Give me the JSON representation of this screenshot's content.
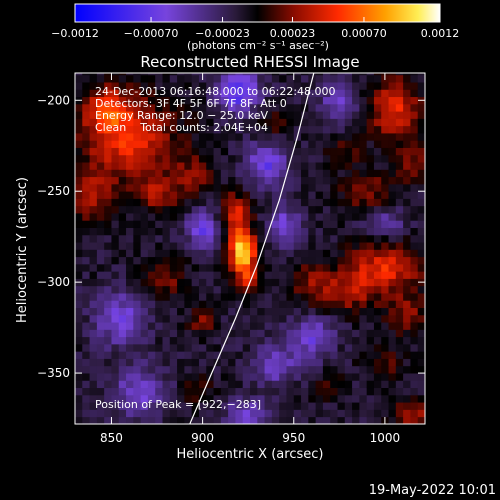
{
  "chart_data": {
    "type": "heatmap",
    "title": "Reconstructed RHESSI Image",
    "xlabel": "Heliocentric X (arcsec)",
    "ylabel": "Heliocentric Y (arcsec)",
    "xlim": [
      830,
      1022
    ],
    "ylim": [
      -378,
      -185
    ],
    "xticks": [
      850,
      900,
      950,
      1000
    ],
    "xtick_labels": [
      "850",
      "900",
      "950",
      "1000"
    ],
    "yticks": [
      -200,
      -250,
      -300,
      -350
    ],
    "ytick_labels": [
      "−200",
      "−250",
      "−300",
      "−350"
    ],
    "colorbar": {
      "min": -0.0012,
      "max": 0.0012,
      "tick_values": [
        -0.0012,
        -0.0007,
        -0.00023,
        0.00023,
        0.0007,
        0.0012
      ],
      "tick_labels": [
        "−0.0012",
        "−0.00070",
        "−0.00023",
        "0.00023",
        "0.00070",
        "0.0012"
      ],
      "unit_label": "(photons cm⁻² s⁻¹ asec⁻²)"
    },
    "annotations": {
      "time_range": "24-Dec-2013 06:16:48.000 to 06:22:48.000",
      "detectors": "Detectors: 3F 4F 5F 6F 7F 8F, Att 0",
      "energy": "Energy Range: 12.0 − 25.0 keV",
      "clean": "Clean    Total counts: 2.04E+04",
      "peak": "Position of Peak = [922,−283]"
    },
    "footer_date": "19-May-2022 10:01",
    "peak": {
      "x": 922,
      "y": -283
    },
    "limb_curve": [
      [
        893,
        -378
      ],
      [
        905,
        -350
      ],
      [
        918,
        -320
      ],
      [
        930,
        -290
      ],
      [
        942,
        -255
      ],
      [
        952,
        -220
      ],
      [
        961,
        -185
      ]
    ],
    "sources": [
      {
        "x": 922,
        "y": -283,
        "sx": 5,
        "sy": 9,
        "amp": 0.0012
      },
      {
        "x": 918,
        "y": -262,
        "sx": 5,
        "sy": 8,
        "amp": 0.00055
      },
      {
        "x": 925,
        "y": -300,
        "sx": 4,
        "sy": 6,
        "amp": 0.0004
      },
      {
        "x": 860,
        "y": -222,
        "sx": 18,
        "sy": 16,
        "amp": 0.0006
      },
      {
        "x": 848,
        "y": -205,
        "sx": 10,
        "sy": 10,
        "amp": 0.00045
      },
      {
        "x": 838,
        "y": -253,
        "sx": 8,
        "sy": 10,
        "amp": 0.00045
      },
      {
        "x": 875,
        "y": -252,
        "sx": 8,
        "sy": 6,
        "amp": 0.0004
      },
      {
        "x": 895,
        "y": -242,
        "sx": 8,
        "sy": 9,
        "amp": 0.0003
      },
      {
        "x": 880,
        "y": -298,
        "sx": 8,
        "sy": 8,
        "amp": 0.0003
      },
      {
        "x": 900,
        "y": -322,
        "sx": 5,
        "sy": 5,
        "amp": 0.00035
      },
      {
        "x": 1005,
        "y": -205,
        "sx": 10,
        "sy": 12,
        "amp": 0.0006
      },
      {
        "x": 1015,
        "y": -235,
        "sx": 6,
        "sy": 8,
        "amp": 0.00035
      },
      {
        "x": 990,
        "y": -250,
        "sx": 10,
        "sy": 8,
        "amp": 0.00035
      },
      {
        "x": 1000,
        "y": -292,
        "sx": 14,
        "sy": 10,
        "amp": 0.0006
      },
      {
        "x": 980,
        "y": -305,
        "sx": 10,
        "sy": 8,
        "amp": 0.0004
      },
      {
        "x": 960,
        "y": -300,
        "sx": 8,
        "sy": 8,
        "amp": 0.00035
      },
      {
        "x": 1012,
        "y": -318,
        "sx": 8,
        "sy": 8,
        "amp": 0.00035
      },
      {
        "x": 1000,
        "y": -345,
        "sx": 8,
        "sy": 6,
        "amp": 0.00025
      },
      {
        "x": 1015,
        "y": -372,
        "sx": 8,
        "sy": 6,
        "amp": 0.0004
      },
      {
        "x": 970,
        "y": -358,
        "sx": 6,
        "sy": 5,
        "amp": 0.00025
      },
      {
        "x": 978,
        "y": -228,
        "sx": 6,
        "sy": 5,
        "amp": 0.00025
      },
      {
        "x": 940,
        "y": -212,
        "sx": 6,
        "sy": 6,
        "amp": 0.00025
      },
      {
        "x": 898,
        "y": -358,
        "sx": 6,
        "sy": 6,
        "amp": 0.00025
      },
      {
        "x": 920,
        "y": -195,
        "sx": 8,
        "sy": 8,
        "amp": -0.0007
      },
      {
        "x": 935,
        "y": -235,
        "sx": 8,
        "sy": 8,
        "amp": -0.00055
      },
      {
        "x": 900,
        "y": -270,
        "sx": 6,
        "sy": 8,
        "amp": -0.00055
      },
      {
        "x": 945,
        "y": -270,
        "sx": 6,
        "sy": 8,
        "amp": -0.0005
      },
      {
        "x": 960,
        "y": -330,
        "sx": 8,
        "sy": 8,
        "amp": -0.0005
      },
      {
        "x": 940,
        "y": -345,
        "sx": 8,
        "sy": 8,
        "amp": -0.00045
      },
      {
        "x": 855,
        "y": -320,
        "sx": 10,
        "sy": 10,
        "amp": -0.0005
      },
      {
        "x": 865,
        "y": -360,
        "sx": 10,
        "sy": 10,
        "amp": -0.00045
      },
      {
        "x": 925,
        "y": -372,
        "sx": 8,
        "sy": 6,
        "amp": -0.00045
      },
      {
        "x": 1000,
        "y": -268,
        "sx": 8,
        "sy": 6,
        "amp": -0.00035
      },
      {
        "x": 975,
        "y": -200,
        "sx": 8,
        "sy": 8,
        "amp": -0.0004
      }
    ]
  }
}
